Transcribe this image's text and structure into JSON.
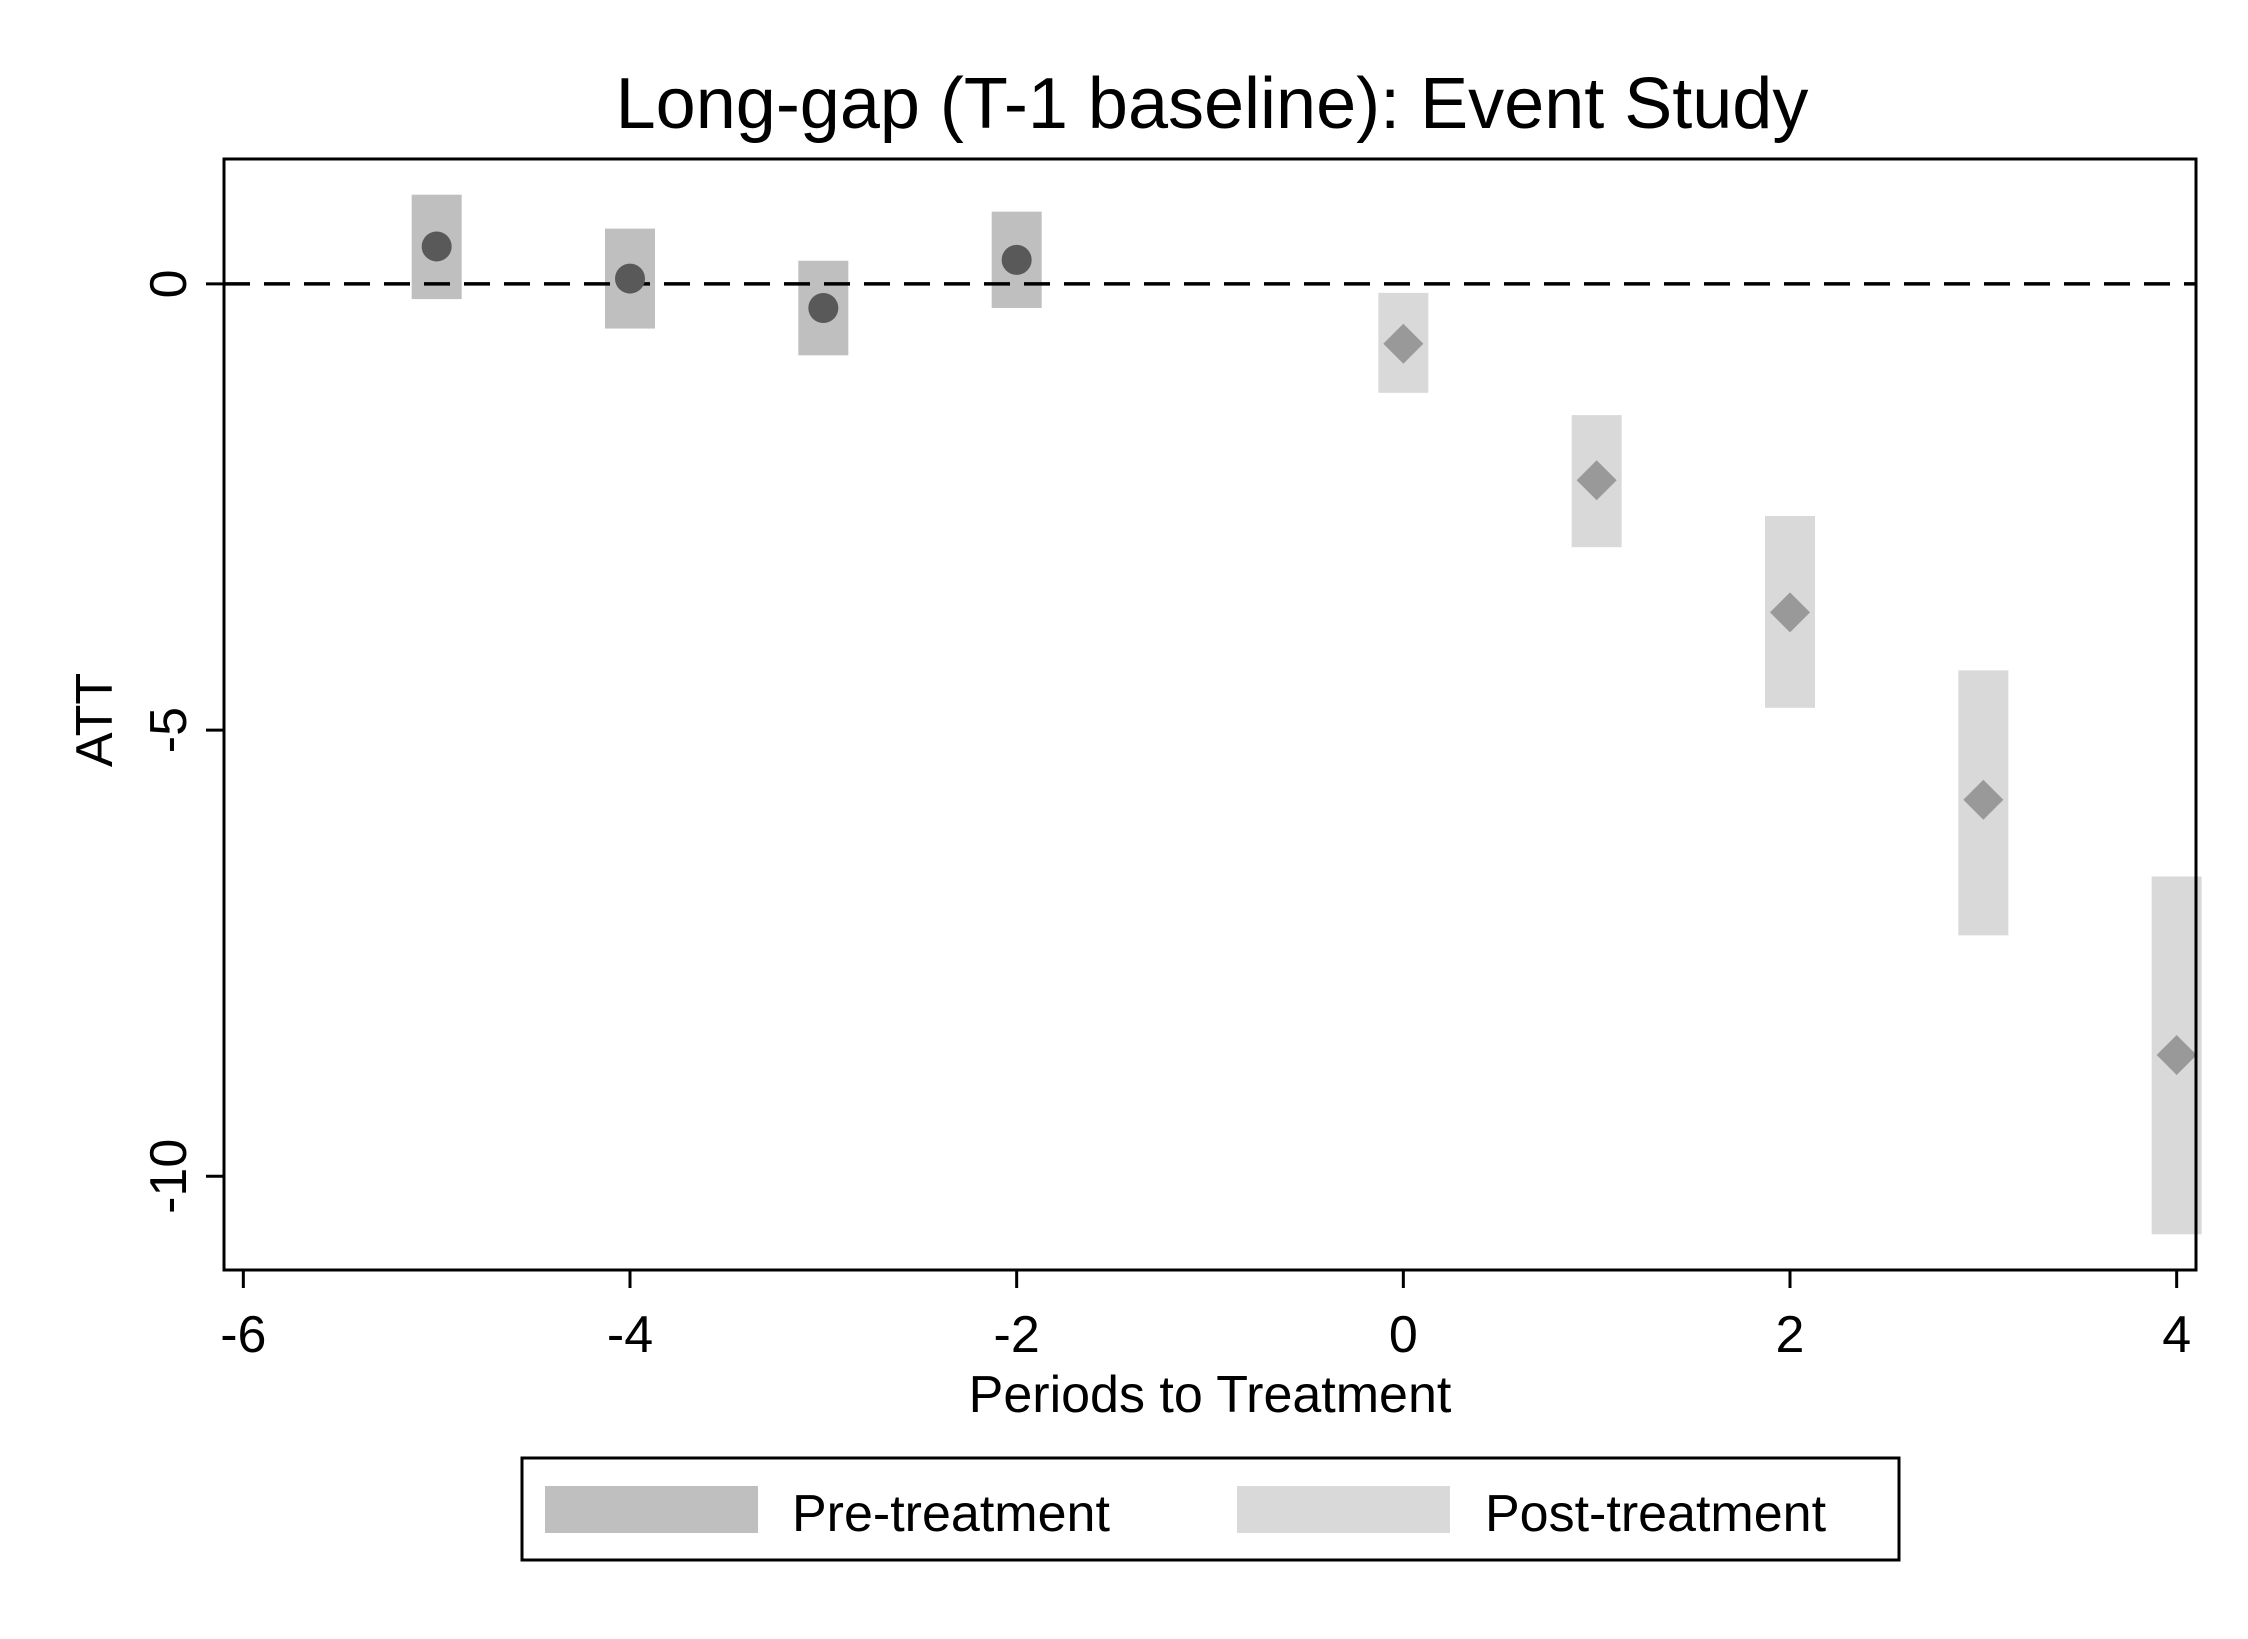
{
  "chart_data": {
    "type": "scatter",
    "title": "Long-gap (T-1 baseline): Event Study",
    "xlabel": "Periods to Treatment",
    "ylabel": "ATT",
    "xlim": [
      -6.1,
      4.1
    ],
    "ylim": [
      -11.05,
      1.4
    ],
    "x_ticks": [
      -6,
      -4,
      -2,
      0,
      2,
      4
    ],
    "y_ticks": [
      0,
      -5,
      -10
    ],
    "x_tick_labels": [
      "-6",
      "-4",
      "-2",
      "0",
      "2",
      "4"
    ],
    "y_tick_labels": [
      "0",
      "-5",
      "-10"
    ],
    "reference_line": {
      "y": 0,
      "style": "dashed"
    },
    "grid": false,
    "legend_position": "bottom",
    "series": [
      {
        "name": "Pre-treatment",
        "marker": "circle",
        "marker_color": "#595959",
        "ci_color": "#bfbfbf",
        "points": [
          {
            "x": -5,
            "y": 0.42,
            "ci_low": -0.17,
            "ci_high": 1.0
          },
          {
            "x": -4,
            "y": 0.06,
            "ci_low": -0.5,
            "ci_high": 0.62
          },
          {
            "x": -3,
            "y": -0.27,
            "ci_low": -0.8,
            "ci_high": 0.26
          },
          {
            "x": -2,
            "y": 0.27,
            "ci_low": -0.27,
            "ci_high": 0.81
          }
        ]
      },
      {
        "name": "Post-treatment",
        "marker": "diamond",
        "marker_color": "#999999",
        "ci_color": "#d9d9d9",
        "points": [
          {
            "x": 0,
            "y": -0.67,
            "ci_low": -1.22,
            "ci_high": -0.1
          },
          {
            "x": 1,
            "y": -2.2,
            "ci_low": -2.95,
            "ci_high": -1.47
          },
          {
            "x": 2,
            "y": -3.68,
            "ci_low": -4.75,
            "ci_high": -2.6
          },
          {
            "x": 3,
            "y": -5.78,
            "ci_low": -7.3,
            "ci_high": -4.33
          },
          {
            "x": 4,
            "y": -8.64,
            "ci_low": -10.65,
            "ci_high": -6.64
          }
        ]
      }
    ]
  }
}
